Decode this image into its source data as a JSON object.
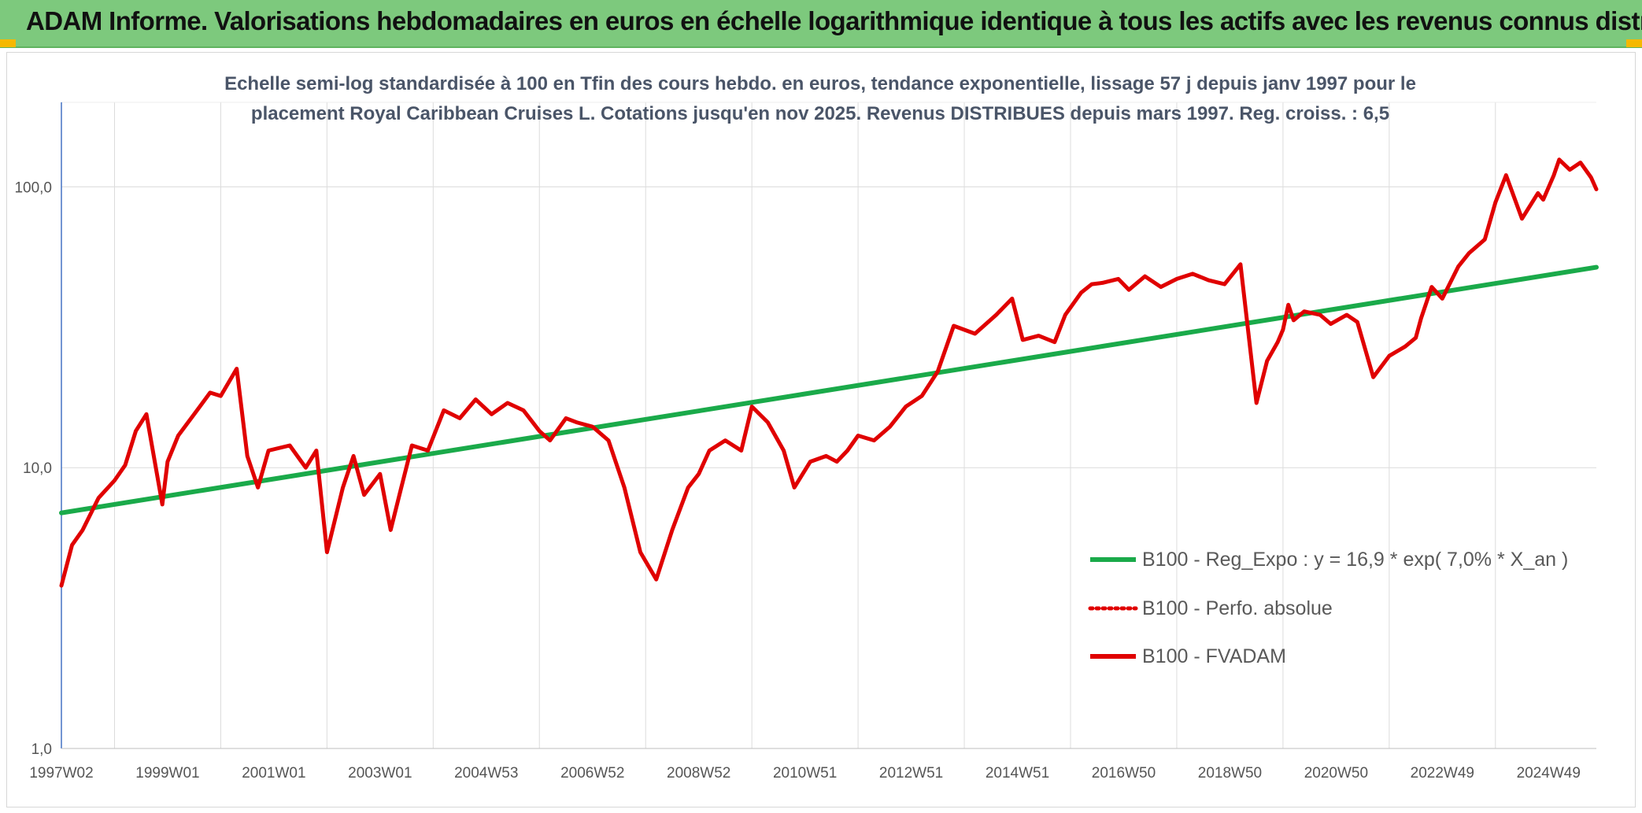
{
  "banner": {
    "title": "ADAM Informe. Valorisations hebdomadaires en euros en échelle logarithmique identique à tous les actifs avec les revenus connus distribués",
    "background": "#7dc97d"
  },
  "chart_data": {
    "type": "line",
    "title_lines": [
      "Echelle semi-log standardisée à 100 en Tfin des cours hebdo. en euros, tendance exponentielle, lissage 57 j depuis janv 1997 pour le",
      "placement Royal Caribbean Cruises L. Cotations jusqu'en nov 2025. Revenus DISTRIBUES depuis mars 1997. Reg. croiss. : 6,5"
    ],
    "y_scale": "log",
    "ylim": [
      1,
      200
    ],
    "xlim": [
      1997.0,
      2025.9
    ],
    "y_ticks": [
      {
        "value": 1,
        "label": "1,0"
      },
      {
        "value": 10,
        "label": "10,0"
      },
      {
        "value": 100,
        "label": "100,0"
      }
    ],
    "x_ticks": [
      {
        "value": 1997.0,
        "label": "1997W02"
      },
      {
        "value": 1999.0,
        "label": "1999W01"
      },
      {
        "value": 2001.0,
        "label": "2001W01"
      },
      {
        "value": 2003.0,
        "label": "2003W01"
      },
      {
        "value": 2005.0,
        "label": "2004W53"
      },
      {
        "value": 2007.0,
        "label": "2006W52"
      },
      {
        "value": 2009.0,
        "label": "2008W52"
      },
      {
        "value": 2011.0,
        "label": "2010W51"
      },
      {
        "value": 2013.0,
        "label": "2012W51"
      },
      {
        "value": 2015.0,
        "label": "2014W51"
      },
      {
        "value": 2017.0,
        "label": "2016W50"
      },
      {
        "value": 2019.0,
        "label": "2018W50"
      },
      {
        "value": 2021.0,
        "label": "2020W50"
      },
      {
        "value": 2023.0,
        "label": "2022W49"
      },
      {
        "value": 2025.0,
        "label": "2024W49"
      }
    ],
    "grid": "vertical and horizontal",
    "legend_position": "bottom-right",
    "series": [
      {
        "name": "B100 - Reg_Expo : y = 16,9 * exp( 7,0% *  X_an )",
        "color": "#1aaa4a",
        "style": "solid",
        "x": [
          1997.0,
          2025.9
        ],
        "y": [
          6.9,
          51.7
        ]
      },
      {
        "name": "B100 - Perfo. absolue",
        "color": "#e00000",
        "style": "dotted",
        "x": [],
        "y": []
      },
      {
        "name": "B100 - FVADAM",
        "color": "#e00000",
        "style": "solid",
        "x": [
          1997.0,
          1997.2,
          1997.4,
          1997.7,
          1998.0,
          1998.2,
          1998.4,
          1998.6,
          1998.9,
          1999.0,
          1999.2,
          1999.5,
          1999.8,
          2000.0,
          2000.3,
          2000.5,
          2000.7,
          2000.9,
          2001.3,
          2001.6,
          2001.8,
          2002.0,
          2002.3,
          2002.5,
          2002.7,
          2003.0,
          2003.2,
          2003.4,
          2003.6,
          2003.9,
          2004.2,
          2004.5,
          2004.8,
          2005.1,
          2005.4,
          2005.7,
          2006.0,
          2006.2,
          2006.5,
          2006.7,
          2007.0,
          2007.3,
          2007.6,
          2007.9,
          2008.2,
          2008.5,
          2008.8,
          2009.0,
          2009.2,
          2009.5,
          2009.8,
          2010.0,
          2010.3,
          2010.6,
          2010.8,
          2011.1,
          2011.4,
          2011.6,
          2011.8,
          2012.0,
          2012.3,
          2012.6,
          2012.9,
          2013.2,
          2013.5,
          2013.8,
          2014.2,
          2014.6,
          2014.9,
          2015.1,
          2015.4,
          2015.7,
          2015.9,
          2016.2,
          2016.4,
          2016.6,
          2016.9,
          2017.1,
          2017.4,
          2017.7,
          2018.0,
          2018.3,
          2018.6,
          2018.9,
          2019.2,
          2019.5,
          2019.7,
          2019.9,
          2020.0,
          2020.1,
          2020.2,
          2020.4,
          2020.7,
          2020.9,
          2021.2,
          2021.4,
          2021.7,
          2022.0,
          2022.3,
          2022.5,
          2022.6,
          2022.8,
          2023.0,
          2023.3,
          2023.5,
          2023.8,
          2024.0,
          2024.2,
          2024.5,
          2024.8,
          2024.9,
          2025.1,
          2025.2,
          2025.4,
          2025.6,
          2025.8,
          2025.9
        ],
        "y": [
          3.8,
          5.3,
          6.0,
          7.8,
          9.0,
          10.2,
          13.5,
          15.5,
          7.4,
          10.5,
          13.0,
          15.5,
          18.5,
          18.0,
          22.5,
          11.0,
          8.5,
          11.5,
          12.0,
          10.0,
          11.5,
          5.0,
          8.5,
          11.0,
          8.0,
          9.5,
          6.0,
          8.5,
          12.0,
          11.5,
          16.0,
          15.0,
          17.5,
          15.5,
          17.0,
          16.0,
          13.5,
          12.5,
          15.0,
          14.5,
          14.0,
          12.5,
          8.5,
          5.0,
          4.0,
          6.0,
          8.5,
          9.5,
          11.5,
          12.5,
          11.5,
          16.5,
          14.5,
          11.5,
          8.5,
          10.5,
          11.0,
          10.5,
          11.5,
          13.0,
          12.5,
          14.0,
          16.5,
          18.0,
          22.0,
          32.0,
          30.0,
          35.0,
          40.0,
          28.5,
          29.5,
          28.0,
          35.0,
          42.0,
          45.0,
          45.5,
          47.0,
          43.0,
          48.0,
          44.0,
          47.0,
          49.0,
          46.5,
          45.0,
          53.0,
          17.0,
          24.0,
          28.0,
          31.0,
          38.0,
          33.5,
          36.0,
          35.0,
          32.5,
          35.0,
          33.0,
          21.0,
          25.0,
          27.0,
          29.0,
          34.0,
          44.0,
          40.0,
          52.0,
          58.0,
          65.0,
          88.0,
          110.0,
          77.0,
          95.0,
          90.0,
          110.0,
          125.0,
          115.0,
          122.0,
          108.0,
          98.0
        ]
      }
    ]
  }
}
